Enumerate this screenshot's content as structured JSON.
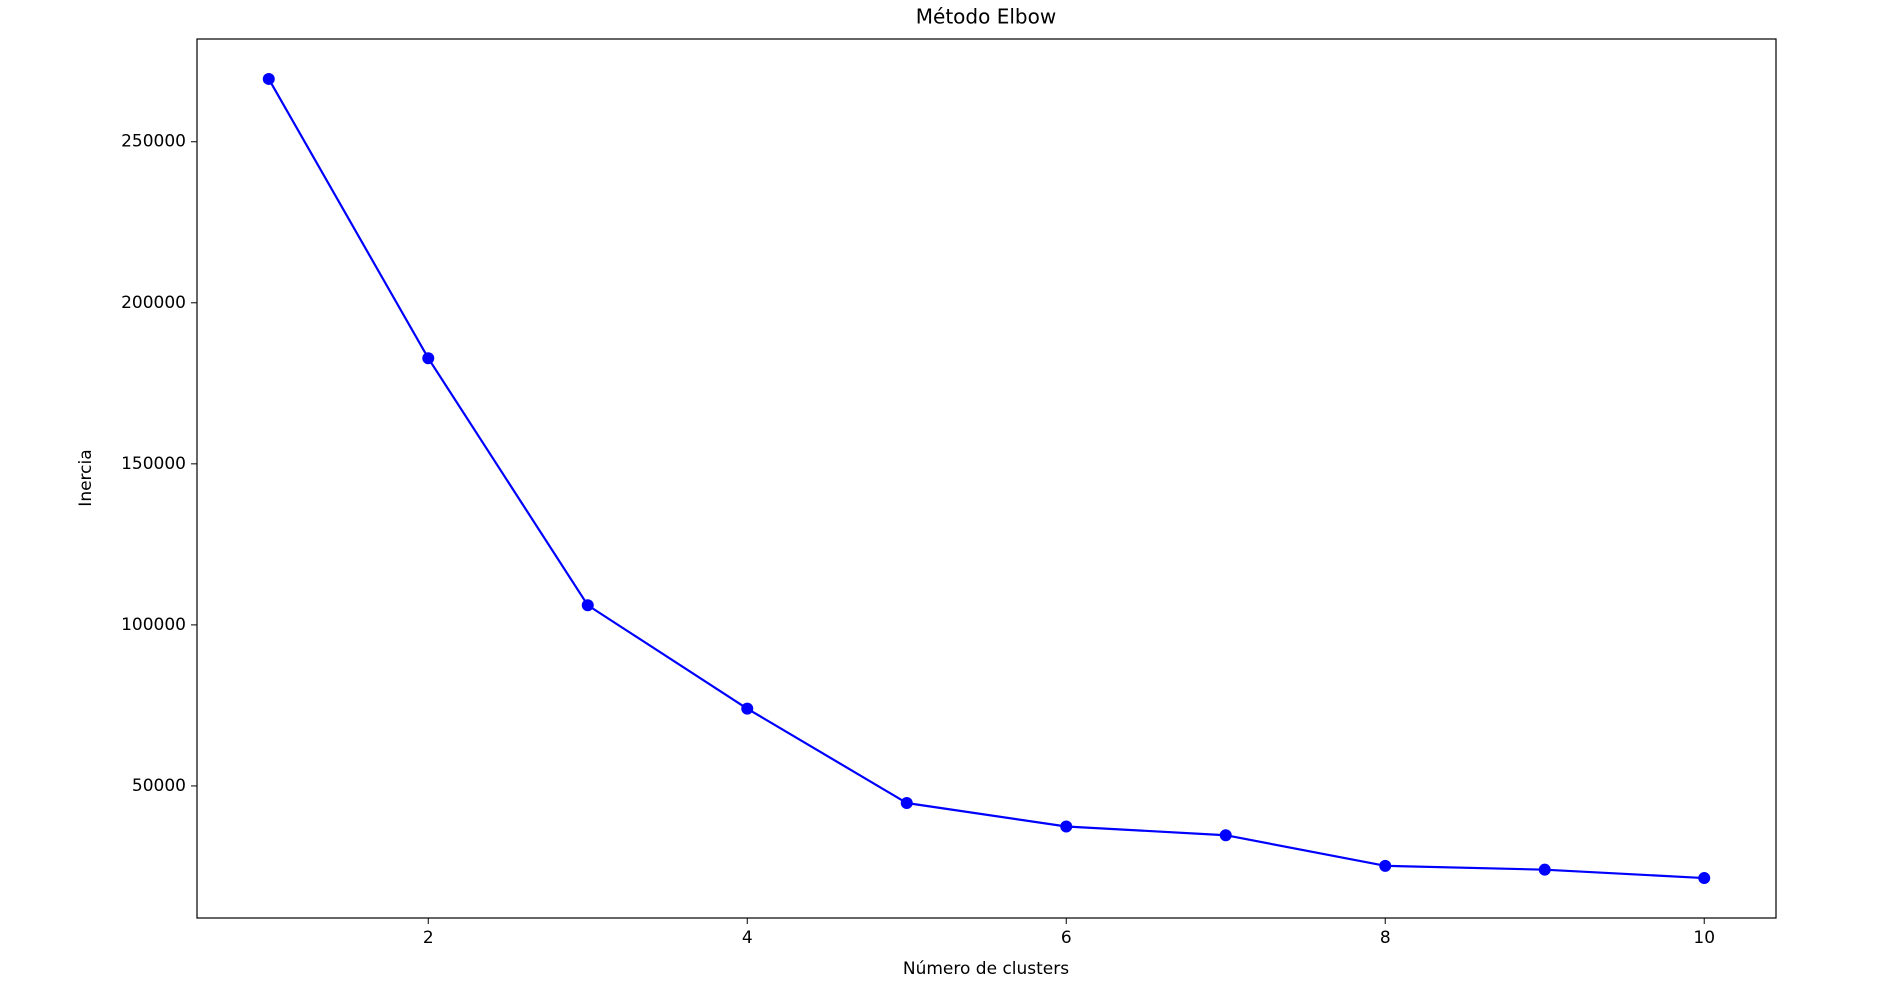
{
  "chart_data": {
    "type": "line",
    "title": "Método Elbow",
    "x_label": "Número de clusters",
    "y_label": "Inercia",
    "x": [
      1,
      2,
      3,
      4,
      5,
      6,
      7,
      8,
      9,
      10
    ],
    "series": [
      {
        "color": "#0000ff",
        "values": [
          269500,
          182800,
          106100,
          74000,
          44700,
          37400,
          34700,
          25200,
          24000,
          21400
        ]
      }
    ],
    "xlim": [
      0.55,
      10.45
    ],
    "xticks": [
      2,
      4,
      6,
      8,
      10
    ],
    "ylim": [
      9000,
      281900
    ],
    "yticks": [
      50000,
      100000,
      150000,
      200000,
      250000
    ],
    "grid": false,
    "marker": "circle"
  }
}
